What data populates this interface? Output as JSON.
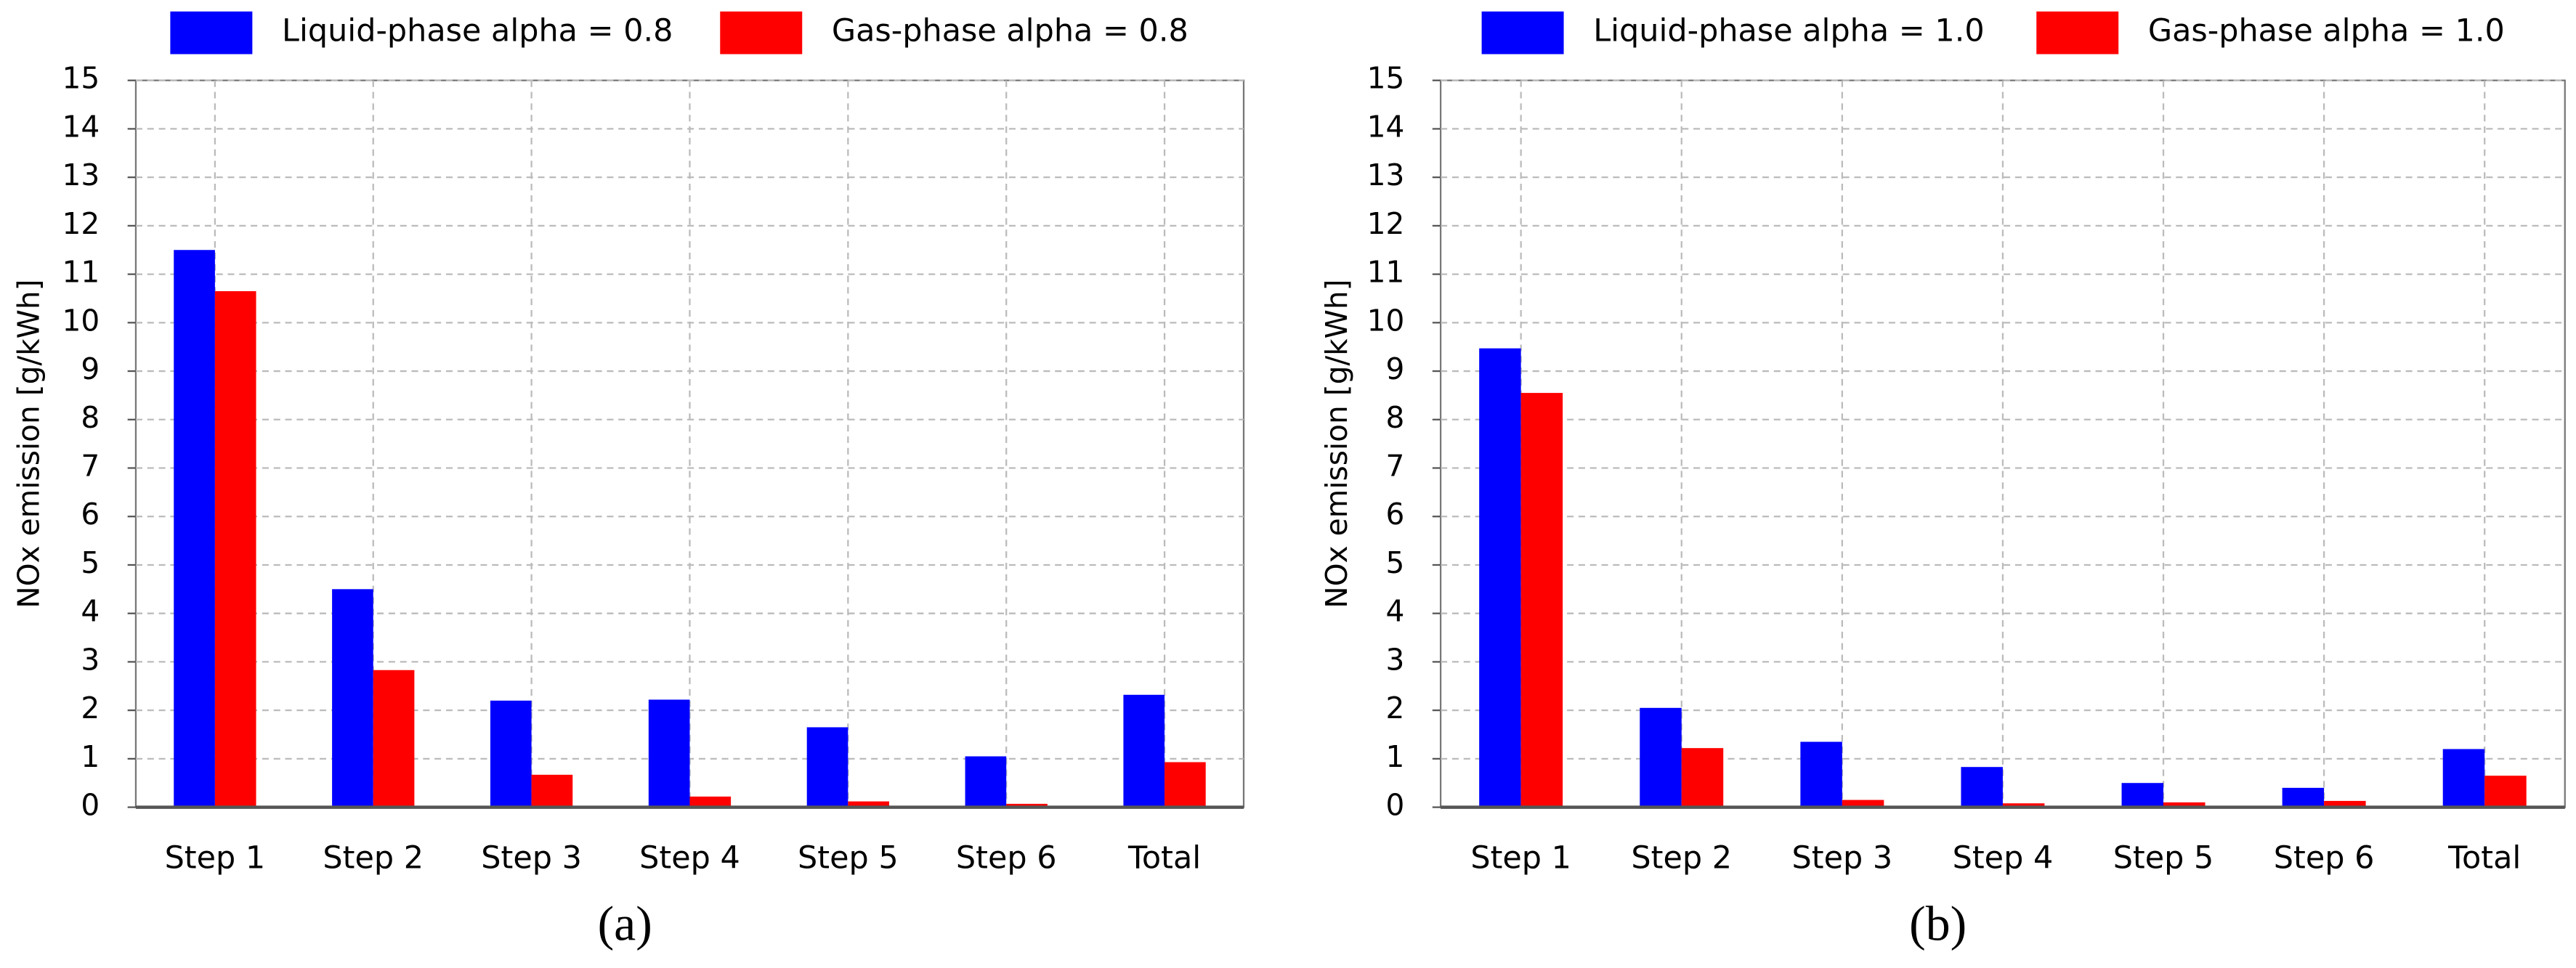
{
  "chart_data": [
    {
      "type": "bar",
      "panel_label": "(a)",
      "ylabel": "NOx emission [g/kWh]",
      "categories": [
        "Step 1",
        "Step 2",
        "Step 3",
        "Step 4",
        "Step 5",
        "Step 6",
        "Total"
      ],
      "series": [
        {
          "name": "Liquid-phase alpha = 0.8",
          "color": "#0000ff",
          "values": [
            11.5,
            4.5,
            2.2,
            2.22,
            1.65,
            1.05,
            2.32
          ]
        },
        {
          "name": "Gas-phase alpha = 0.8",
          "color": "#ff0000",
          "values": [
            10.65,
            2.83,
            0.67,
            0.22,
            0.12,
            0.07,
            0.93
          ]
        }
      ],
      "ylim": [
        0,
        15
      ],
      "yticks": [
        0,
        1,
        2,
        3,
        4,
        5,
        6,
        7,
        8,
        9,
        10,
        11,
        12,
        13,
        14,
        15
      ],
      "grid": true,
      "legend": "top"
    },
    {
      "type": "bar",
      "panel_label": "(b)",
      "ylabel": "NOx emission [g/kWh]",
      "categories": [
        "Step 1",
        "Step 2",
        "Step 3",
        "Step 4",
        "Step 5",
        "Step 6",
        "Total"
      ],
      "series": [
        {
          "name": "Liquid-phase alpha = 1.0",
          "color": "#0000ff",
          "values": [
            9.47,
            2.05,
            1.35,
            0.83,
            0.5,
            0.4,
            1.2
          ]
        },
        {
          "name": "Gas-phase alpha = 1.0",
          "color": "#ff0000",
          "values": [
            8.55,
            1.22,
            0.15,
            0.08,
            0.1,
            0.13,
            0.65
          ]
        }
      ],
      "ylim": [
        0,
        15
      ],
      "yticks": [
        0,
        1,
        2,
        3,
        4,
        5,
        6,
        7,
        8,
        9,
        10,
        11,
        12,
        13,
        14,
        15
      ],
      "grid": true,
      "legend": "top"
    }
  ]
}
